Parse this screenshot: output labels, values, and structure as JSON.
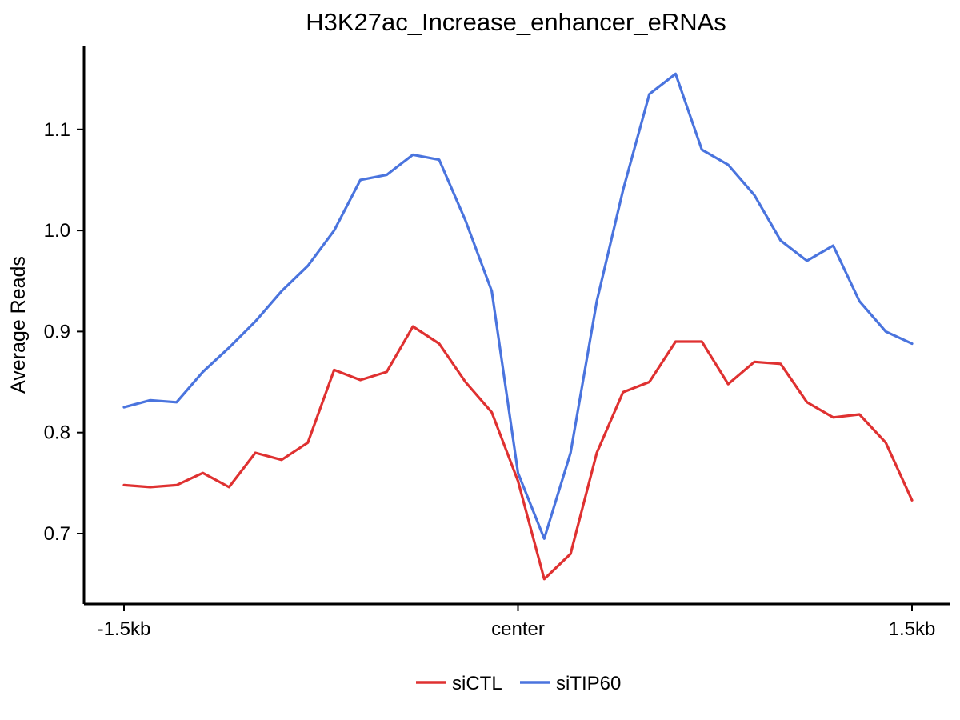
{
  "chart_data": {
    "type": "line",
    "title": "H3K27ac_Increase_enhancer_eRNAs",
    "ylabel": "Average Reads",
    "xlabel": "",
    "xlim": [
      -1.5,
      1.5
    ],
    "ylim": [
      0.63,
      1.18
    ],
    "x_ticks": [
      {
        "value": -1.5,
        "label": "-1.5kb"
      },
      {
        "value": 0,
        "label": "center"
      },
      {
        "value": 1.5,
        "label": "1.5kb"
      }
    ],
    "y_ticks": [
      {
        "value": 0.7,
        "label": "0.7"
      },
      {
        "value": 0.8,
        "label": "0.8"
      },
      {
        "value": 0.9,
        "label": "0.9"
      },
      {
        "value": 1.0,
        "label": "1.0"
      },
      {
        "value": 1.1,
        "label": "1.1"
      }
    ],
    "grid": false,
    "legend_position": "bottom",
    "x": [
      -1.5,
      -1.4,
      -1.3,
      -1.2,
      -1.1,
      -1.0,
      -0.9,
      -0.8,
      -0.7,
      -0.6,
      -0.5,
      -0.4,
      -0.3,
      -0.2,
      -0.1,
      0.0,
      0.1,
      0.2,
      0.3,
      0.4,
      0.5,
      0.6,
      0.7,
      0.8,
      0.9,
      1.0,
      1.1,
      1.2,
      1.3,
      1.4,
      1.5
    ],
    "series": [
      {
        "name": "siCTL",
        "color": "#DF3131",
        "values": [
          0.748,
          0.746,
          0.748,
          0.76,
          0.746,
          0.78,
          0.773,
          0.79,
          0.862,
          0.852,
          0.86,
          0.905,
          0.888,
          0.85,
          0.82,
          0.752,
          0.655,
          0.68,
          0.78,
          0.84,
          0.85,
          0.89,
          0.89,
          0.848,
          0.87,
          0.868,
          0.83,
          0.815,
          0.818,
          0.79,
          0.733
        ]
      },
      {
        "name": "siTIP60",
        "color": "#4A74DE",
        "values": [
          0.825,
          0.832,
          0.83,
          0.86,
          0.884,
          0.91,
          0.94,
          0.965,
          1.0,
          1.05,
          1.055,
          1.075,
          1.07,
          1.01,
          0.94,
          0.76,
          0.695,
          0.78,
          0.93,
          1.04,
          1.135,
          1.155,
          1.08,
          1.065,
          1.035,
          0.99,
          0.97,
          0.985,
          0.93,
          0.9,
          0.888
        ]
      }
    ]
  }
}
